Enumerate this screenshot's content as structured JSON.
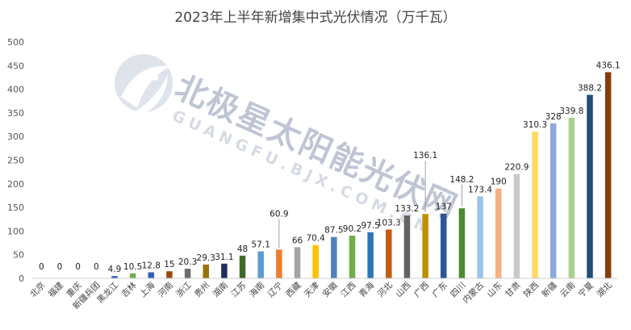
{
  "watermark": {
    "main": "北极星太阳能光伏网",
    "sub": "GUANGFU.BJX.COM.CN",
    "color": "#7d8aa6"
  },
  "chart_data": {
    "type": "bar",
    "title": "2023年上半年新增集中式光伏情况（万千瓦）",
    "xlabel": "",
    "ylabel": "",
    "ylim": [
      0,
      500
    ],
    "yticks": [
      0,
      50,
      100,
      150,
      200,
      250,
      300,
      350,
      400,
      450,
      500
    ],
    "grid": false,
    "legend": "none",
    "categories": [
      "北京",
      "福建",
      "重庆",
      "新疆兵团",
      "黑龙江",
      "吉林",
      "上海",
      "河南",
      "浙江",
      "贵州",
      "湖南",
      "江苏",
      "海南",
      "辽宁",
      "西藏",
      "天津",
      "安徽",
      "江西",
      "青海",
      "河北",
      "山西",
      "广西",
      "广东",
      "四川",
      "内蒙古",
      "山东",
      "甘肃",
      "陕西",
      "新疆",
      "云南",
      "宁夏",
      "湖北"
    ],
    "values": [
      0,
      0,
      0,
      0,
      4.9,
      10.5,
      12.8,
      15,
      20.3,
      29.3,
      31.1,
      48,
      57.1,
      60.9,
      66,
      70.4,
      87.5,
      90.2,
      97.5,
      103.3,
      133.2,
      136.1,
      137,
      148.2,
      173.4,
      190,
      220.9,
      310.3,
      328,
      339.8,
      388.2,
      436.1
    ],
    "data_labels": [
      "0",
      "0",
      "0",
      "0",
      "4.9",
      "10.5",
      "12.8",
      "15",
      "20.3",
      "29.3",
      "31.1",
      "48",
      "57.1",
      "60.9",
      "66",
      "70.4",
      "87.5",
      "90.2",
      "97.5",
      "103.3",
      "133.2",
      "136.1",
      "137",
      "148.2",
      "173.4",
      "190",
      "220.9",
      "310.3",
      "328",
      "339.8",
      "388.2",
      "436.1"
    ],
    "colors": [
      "#4472c4",
      "#70ad47",
      "#2e4f8f",
      "#6b6b6b",
      "#2e60b8",
      "#70ad47",
      "#2e60b8",
      "#9e480e",
      "#6b6b6b",
      "#997300",
      "#1f2f5c",
      "#43682b",
      "#5b9bd5",
      "#ed7d31",
      "#a5a5a5",
      "#ffc000",
      "#4f81bd",
      "#70ad47",
      "#2e75b6",
      "#c55a11",
      "#636363",
      "#bf8f00",
      "#2e5597",
      "#4e8a2f",
      "#9dc3e6",
      "#f4b183",
      "#c9c9c9",
      "#ffd966",
      "#8eaadb",
      "#a9d18e",
      "#1f4e79",
      "#843c0c"
    ]
  }
}
